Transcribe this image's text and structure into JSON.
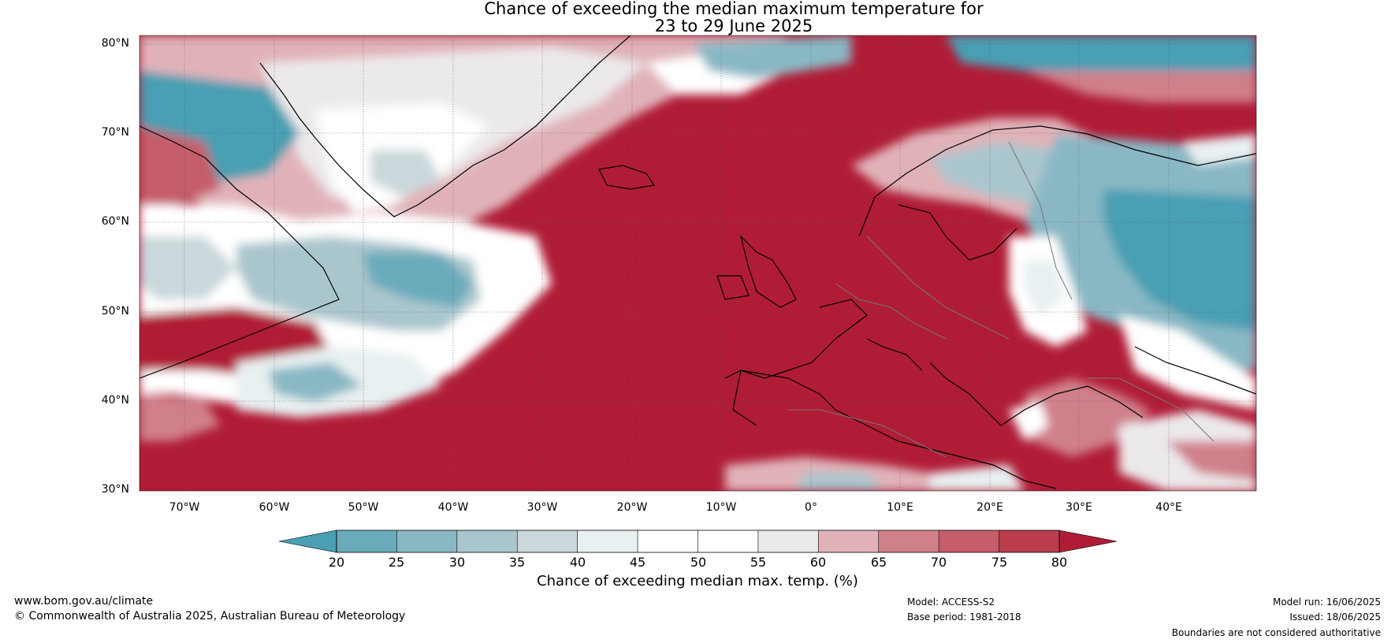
{
  "title": {
    "line1": "Chance of exceeding the median maximum temperature for",
    "line2": "23 to 29 June 2025"
  },
  "map": {
    "latitude_ticks": [
      "80°N",
      "70°N",
      "60°N",
      "50°N",
      "40°N",
      "30°N"
    ],
    "longitude_ticks": [
      "70°W",
      "60°W",
      "50°W",
      "40°W",
      "30°W",
      "20°W",
      "10°W",
      "0°",
      "10°E",
      "20°E",
      "30°E",
      "40°E"
    ]
  },
  "colorbar": {
    "labels": [
      "20",
      "25",
      "30",
      "35",
      "40",
      "45",
      "50",
      "55",
      "60",
      "65",
      "70",
      "75",
      "80"
    ],
    "colors": [
      "#4a9fb3",
      "#6aabbb",
      "#89b8c4",
      "#aac6cd",
      "#cbd8db",
      "#e8f0f1",
      "#ffffff",
      "#ffffff",
      "#ece9eb",
      "#e0b2b8",
      "#d0808b",
      "#c55d6a",
      "#bb3d4c",
      "#b01c36"
    ],
    "title": "Chance of exceeding median max. temp. (%)"
  },
  "footer": {
    "website": "www.bom.gov.au/climate",
    "copyright": "© Commonwealth of Australia 2025, Australian Bureau of Meteorology",
    "model": "Model: ACCESS-S2",
    "base_period": "Base period: 1981-2018",
    "model_run": "Model run: 16/06/2025",
    "issued": "Issued: 18/06/2025",
    "disclaimer": "Boundaries are not considered authoritative"
  }
}
